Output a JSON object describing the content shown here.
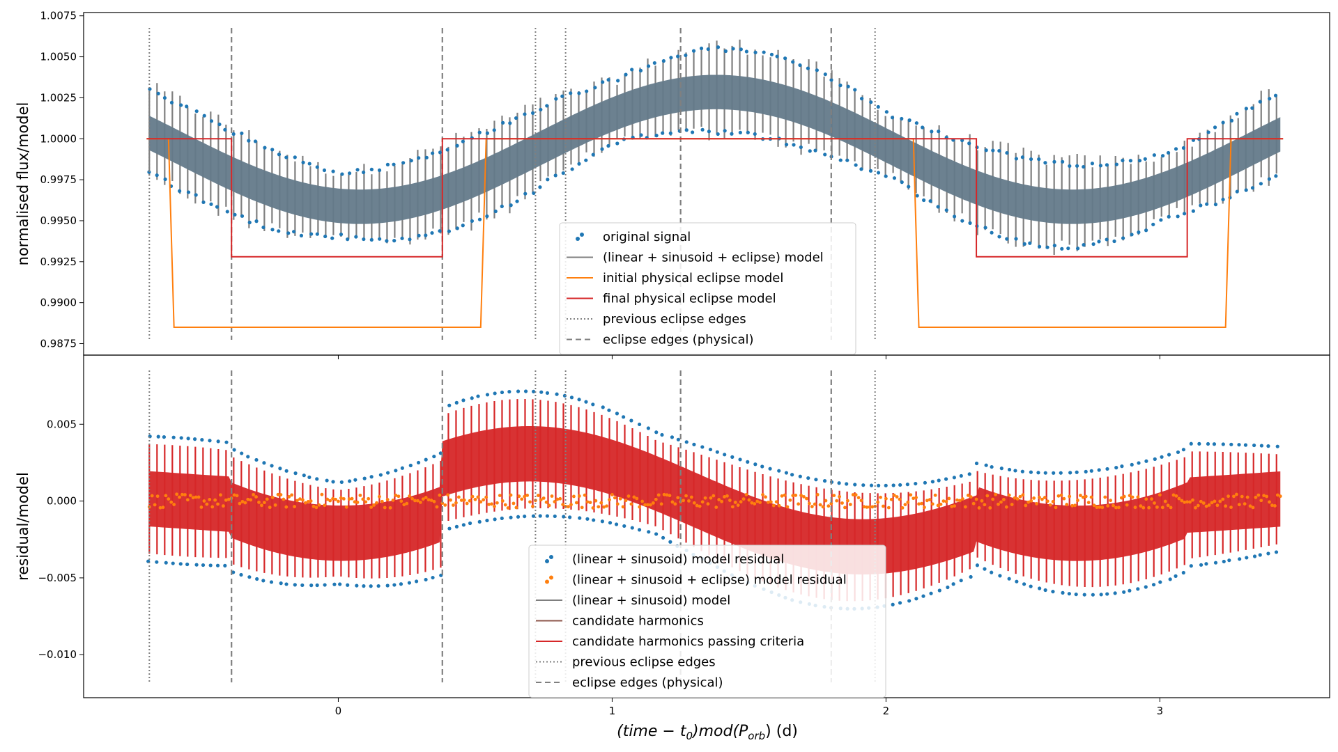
{
  "figure": {
    "xlabel_main": "(time − t",
    "xlabel_sub0": "0",
    "xlabel_mid": ")mod(P",
    "xlabel_sub1": "orb",
    "xlabel_end": ") (d)"
  },
  "colors": {
    "original": "#1f77b4",
    "model_grey": "#7f7f7f",
    "body_grey": "#647a8a",
    "initial": "#ff7f0e",
    "final": "#d62728",
    "residual_ecl": "#ff7f0e",
    "harmonics": "#8c564b",
    "passing": "#d62728"
  },
  "chart_data": [
    {
      "type": "scatter",
      "panel": "top",
      "ylabel": "normalised flux/model",
      "xlim": [
        -0.93,
        3.62
      ],
      "ylim": [
        0.9868,
        1.0077
      ],
      "xticks": [
        0,
        1,
        2,
        3
      ],
      "xtick_labels": [
        "0",
        "1",
        "2",
        "3"
      ],
      "yticks": [
        0.9875,
        0.99,
        0.9925,
        0.995,
        0.9975,
        1.0,
        1.0025,
        1.005,
        1.0075
      ],
      "ytick_labels": [
        "0.9875",
        "0.9900",
        "0.9925",
        "0.9950",
        "0.9975",
        "1.0000",
        "1.0025",
        "1.0050",
        "1.0075"
      ],
      "grid": false,
      "legend_position": "bottom-center",
      "series": [
        {
          "name": "original signal",
          "kind": "points",
          "description_values": {
            "x_range": [
              -0.7,
              3.45
            ],
            "sinusoid_center": 0.9995,
            "sinusoid_amplitude": 0.0035,
            "period": 2.6
          }
        },
        {
          "name": "(linear + sinusoid + eclipse) model",
          "kind": "line"
        },
        {
          "name": "initial physical eclipse model",
          "kind": "line",
          "x": [
            -0.7,
            -0.62,
            -0.6,
            0.52,
            0.54,
            2.1,
            2.12,
            3.24,
            3.26,
            3.45
          ],
          "y": [
            1.0,
            1.0,
            0.9885,
            0.9885,
            1.0,
            1.0,
            0.9885,
            0.9885,
            1.0,
            1.0
          ]
        },
        {
          "name": "final physical eclipse model",
          "kind": "line",
          "x": [
            -0.7,
            -0.39,
            -0.39,
            0.38,
            0.38,
            2.33,
            2.33,
            3.1,
            3.1,
            3.45
          ],
          "y": [
            1.0,
            1.0,
            0.9928,
            0.9928,
            1.0,
            1.0,
            0.9928,
            0.9928,
            1.0,
            1.0
          ]
        },
        {
          "name": "previous eclipse edges",
          "kind": "vlines-dotted",
          "x": [
            -0.69,
            0.72,
            0.83,
            1.96
          ]
        },
        {
          "name": "eclipse edges (physical)",
          "kind": "vlines-dashed",
          "x": [
            -0.39,
            0.38,
            1.25,
            1.8
          ]
        }
      ]
    },
    {
      "type": "scatter",
      "panel": "bottom",
      "ylabel": "residual/model",
      "xlim": [
        -0.93,
        3.62
      ],
      "ylim": [
        -0.0128,
        0.0095
      ],
      "xticks": [
        0,
        1,
        2,
        3
      ],
      "xtick_labels": [
        "0",
        "1",
        "2",
        "3"
      ],
      "yticks": [
        -0.01,
        -0.005,
        0.0,
        0.005
      ],
      "ytick_labels": [
        "−0.010",
        "−0.005",
        "0.000",
        "0.005"
      ],
      "grid": false,
      "legend_position": "bottom-center",
      "series": [
        {
          "name": "(linear + sinusoid) model residual",
          "kind": "points"
        },
        {
          "name": "(linear + sinusoid + eclipse) model residual",
          "kind": "points"
        },
        {
          "name": "(linear + sinusoid) model",
          "kind": "line"
        },
        {
          "name": "candidate harmonics",
          "kind": "line"
        },
        {
          "name": "candidate harmonics passing criteria",
          "kind": "line"
        },
        {
          "name": "previous eclipse edges",
          "kind": "vlines-dotted",
          "x": [
            -0.69,
            0.72,
            0.83,
            1.96
          ]
        },
        {
          "name": "eclipse edges (physical)",
          "kind": "vlines-dashed",
          "x": [
            -0.39,
            0.38,
            1.25,
            1.8
          ]
        }
      ]
    }
  ]
}
